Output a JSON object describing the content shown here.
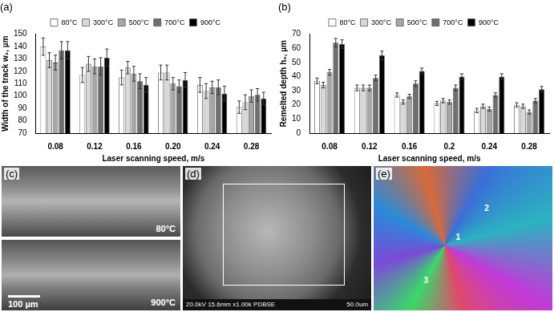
{
  "chart_data": [
    {
      "type": "bar",
      "title": "(a)",
      "x_label": "Laser scanning speed, m/s",
      "y_label": "Width of the track w₂, µm",
      "categories": [
        "0.08",
        "0.12",
        "0.16",
        "0.20",
        "0.24",
        "0.28"
      ],
      "series": [
        {
          "name": "80°C",
          "color": "#ffffff",
          "values": [
            140,
            117,
            115,
            119,
            109,
            91
          ],
          "errors": [
            7,
            6,
            6,
            6,
            6,
            5
          ]
        },
        {
          "name": "300°C",
          "color": "#d9d9d9",
          "values": [
            129,
            126,
            123,
            119,
            104,
            95
          ],
          "errors": [
            6,
            6,
            5,
            6,
            6,
            6
          ]
        },
        {
          "name": "500°C",
          "color": "#a6a6a6",
          "values": [
            127,
            124,
            118,
            110,
            107,
            100
          ],
          "errors": [
            6,
            6,
            6,
            5,
            5,
            5
          ]
        },
        {
          "name": "700°C",
          "color": "#6e6e6e",
          "values": [
            137,
            124,
            112,
            108,
            107,
            101
          ],
          "errors": [
            7,
            7,
            6,
            5,
            6,
            5
          ]
        },
        {
          "name": "900°C",
          "color": "#000000",
          "values": [
            137,
            131,
            109,
            113,
            102,
            98
          ],
          "errors": [
            7,
            7,
            6,
            6,
            6,
            5
          ]
        }
      ],
      "ylim": [
        70,
        150
      ],
      "yticks": [
        70,
        80,
        90,
        100,
        110,
        120,
        130,
        140,
        150
      ],
      "grid": false,
      "legend": "top"
    },
    {
      "type": "bar",
      "title": "(b)",
      "x_label": "Laser scanning speed, m/s",
      "y_label": "Remelted depth h₂, µm",
      "categories": [
        "0.08",
        "0.12",
        "0.16",
        "0.2",
        "0.24",
        "0.28"
      ],
      "series": [
        {
          "name": "80°C",
          "color": "#ffffff",
          "values": [
            37,
            32,
            27,
            21,
            16,
            20
          ],
          "errors": [
            2,
            2,
            1.5,
            1.5,
            1.5,
            1.5
          ]
        },
        {
          "name": "300°C",
          "color": "#d9d9d9",
          "values": [
            34,
            32,
            22,
            23,
            19,
            19
          ],
          "errors": [
            2,
            2,
            1.5,
            1.5,
            1.5,
            1.5
          ]
        },
        {
          "name": "500°C",
          "color": "#a6a6a6",
          "values": [
            43,
            32,
            26,
            22,
            17,
            15
          ],
          "errors": [
            2,
            2,
            1.5,
            1.5,
            1.5,
            1.5
          ]
        },
        {
          "name": "700°C",
          "color": "#6e6e6e",
          "values": [
            64,
            39,
            35,
            32,
            27,
            23
          ],
          "errors": [
            3,
            2,
            2,
            2,
            1.5,
            1.5
          ]
        },
        {
          "name": "900°C",
          "color": "#000000",
          "values": [
            63,
            55,
            44,
            40,
            40,
            31
          ],
          "errors": [
            3,
            3,
            2,
            2,
            2,
            2
          ]
        }
      ],
      "ylim": [
        0,
        70
      ],
      "yticks": [
        0,
        10,
        20,
        30,
        40,
        50,
        60,
        70
      ],
      "grid": false,
      "legend": "top"
    }
  ],
  "images": [
    {
      "label": "(c)",
      "sub_labels": [
        "80°C",
        "900°C"
      ],
      "scale": "100 µm"
    },
    {
      "label": "(d)",
      "caption": "20.0kV 15.6mm x1.00k PDBSE",
      "scale": "50.0um"
    },
    {
      "label": "(e)",
      "markers": [
        "1",
        "2",
        "3"
      ]
    }
  ]
}
